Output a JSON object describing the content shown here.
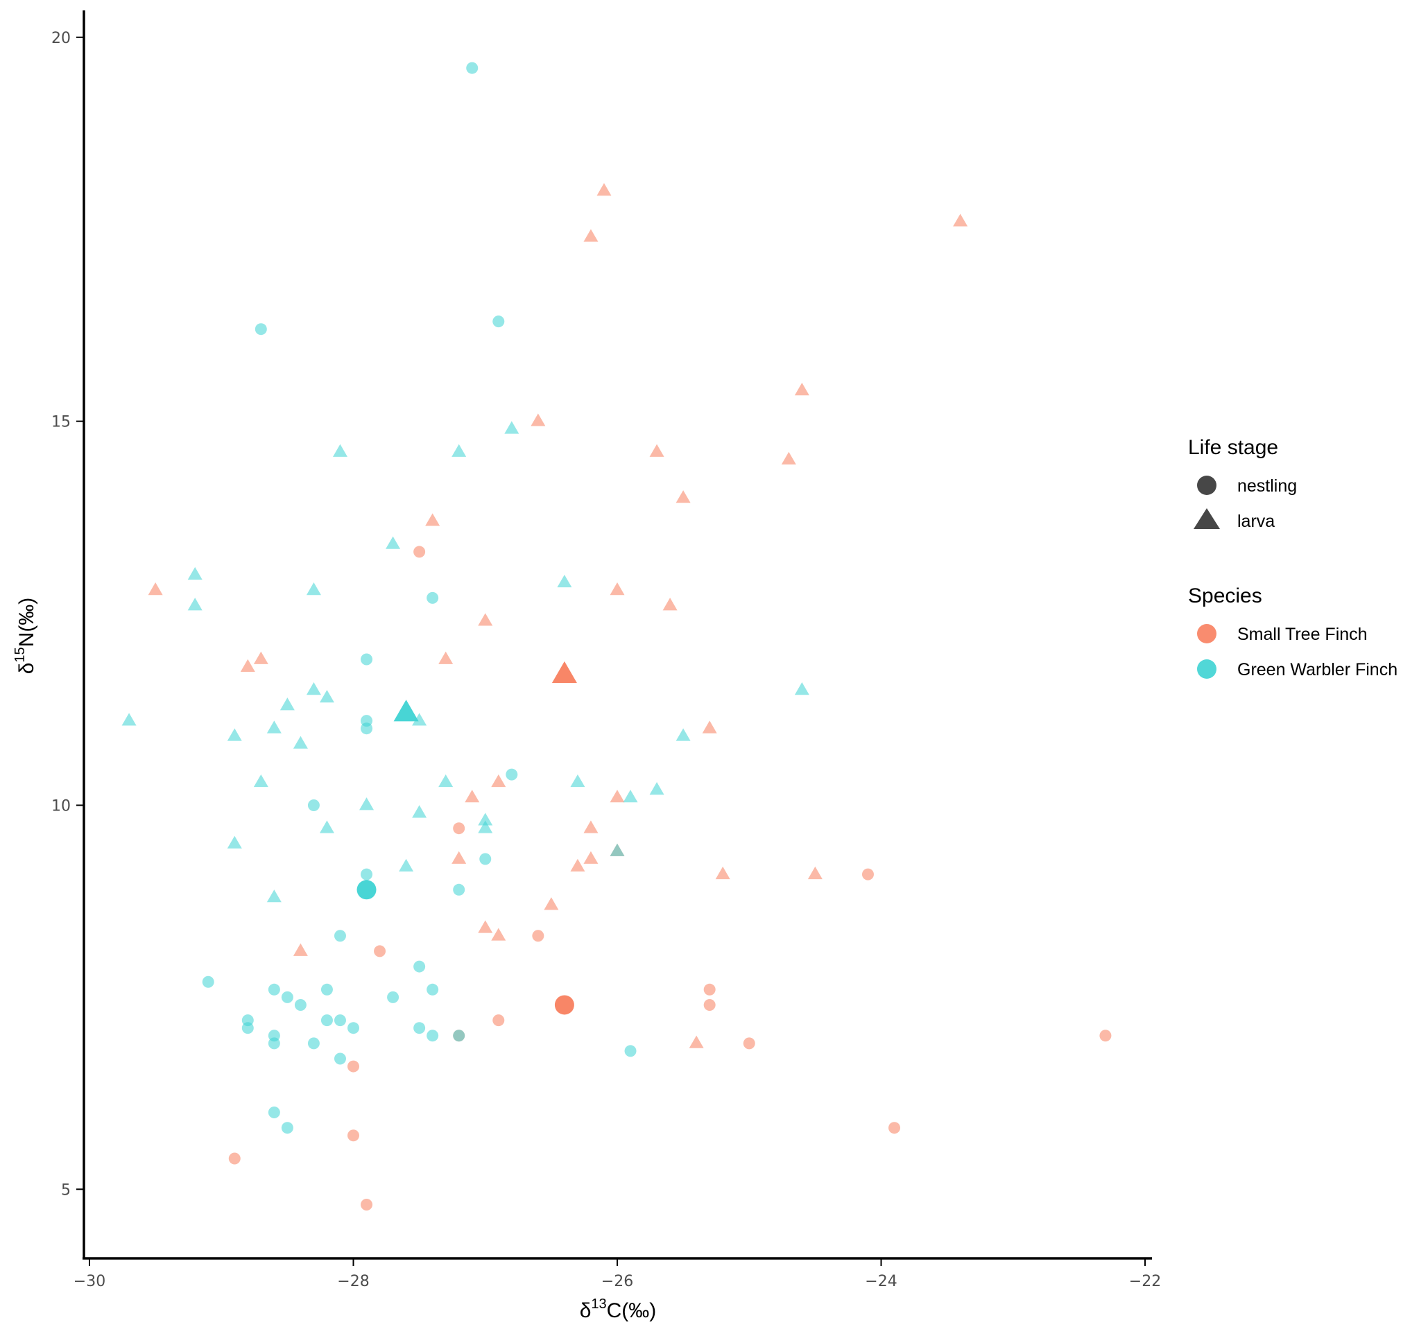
{
  "chart_data": {
    "type": "scatter",
    "xlabel": {
      "prefix": "δ",
      "sup": "13",
      "suffix": "C(‰)"
    },
    "ylabel": {
      "prefix": "δ",
      "sup": "15",
      "suffix": "N(‰)"
    },
    "xlim": [
      -30,
      -22
    ],
    "ylim": [
      4.1,
      20.35
    ],
    "x_ticks": [
      -30,
      -28,
      -26,
      -24,
      -22
    ],
    "x_tick_labels": [
      "−30",
      "−28",
      "−26",
      "−24",
      "−22"
    ],
    "y_ticks": [
      5,
      10,
      15,
      20
    ],
    "y_tick_labels": [
      "5",
      "10",
      "15",
      "20"
    ],
    "grid": false,
    "legend_position": "right",
    "legends": {
      "shape": {
        "title": "Life stage",
        "items": [
          {
            "label": "nestling",
            "shape": "circle"
          },
          {
            "label": "larva",
            "shape": "triangle"
          }
        ]
      },
      "color": {
        "title": "Species",
        "items": [
          {
            "label": "Small Tree Finch",
            "color": "#f8805f"
          },
          {
            "label": "Green Warbler Finch",
            "color": "#3ed3d3"
          }
        ]
      }
    },
    "series": [
      {
        "name": "Small Tree Finch",
        "color": "#f8805f",
        "nestling": [
          [
            -27.5,
            13.3
          ],
          [
            -27.2,
            9.7
          ],
          [
            -26.6,
            8.3
          ],
          [
            -27.8,
            8.1
          ],
          [
            -27.2,
            7.0
          ],
          [
            -26.9,
            7.2
          ],
          [
            -25.3,
            7.6
          ],
          [
            -25.3,
            7.4
          ],
          [
            -25.0,
            6.9
          ],
          [
            -24.1,
            9.1
          ],
          [
            -22.3,
            7.0
          ],
          [
            -23.9,
            5.8
          ],
          [
            -28.0,
            6.6
          ],
          [
            -28.0,
            5.7
          ],
          [
            -28.9,
            5.4
          ],
          [
            -27.9,
            4.8
          ]
        ],
        "larva": [
          [
            -26.1,
            18.0
          ],
          [
            -26.2,
            17.4
          ],
          [
            -23.4,
            17.6
          ],
          [
            -24.6,
            15.4
          ],
          [
            -26.6,
            15.0
          ],
          [
            -25.7,
            14.6
          ],
          [
            -24.7,
            14.5
          ],
          [
            -25.5,
            14.0
          ],
          [
            -27.4,
            13.7
          ],
          [
            -29.5,
            12.8
          ],
          [
            -26.0,
            12.8
          ],
          [
            -25.6,
            12.6
          ],
          [
            -27.0,
            12.4
          ],
          [
            -28.7,
            11.9
          ],
          [
            -28.8,
            11.8
          ],
          [
            -27.3,
            11.9
          ],
          [
            -25.3,
            11.0
          ],
          [
            -27.1,
            10.1
          ],
          [
            -26.9,
            10.3
          ],
          [
            -26.0,
            10.1
          ],
          [
            -26.2,
            9.7
          ],
          [
            -27.2,
            9.3
          ],
          [
            -26.3,
            9.2
          ],
          [
            -26.2,
            9.3
          ],
          [
            -26.0,
            9.4
          ],
          [
            -25.2,
            9.1
          ],
          [
            -24.5,
            9.1
          ],
          [
            -26.5,
            8.7
          ],
          [
            -27.0,
            8.4
          ],
          [
            -26.9,
            8.3
          ],
          [
            -28.4,
            8.1
          ],
          [
            -25.4,
            6.9
          ]
        ],
        "mean": {
          "nestling": [
            -26.4,
            7.4
          ],
          "larva": [
            -26.4,
            11.7
          ]
        }
      },
      {
        "name": "Green Warbler Finch",
        "color": "#3ed3d3",
        "nestling": [
          [
            -27.1,
            19.6
          ],
          [
            -26.9,
            16.3
          ],
          [
            -28.7,
            16.2
          ],
          [
            -27.4,
            12.7
          ],
          [
            -27.9,
            11.9
          ],
          [
            -27.9,
            11.1
          ],
          [
            -27.9,
            11.0
          ],
          [
            -26.8,
            10.4
          ],
          [
            -28.3,
            10.0
          ],
          [
            -27.0,
            9.3
          ],
          [
            -27.9,
            9.1
          ],
          [
            -27.2,
            8.9
          ],
          [
            -28.1,
            8.3
          ],
          [
            -27.5,
            7.9
          ],
          [
            -28.6,
            7.6
          ],
          [
            -28.5,
            7.5
          ],
          [
            -28.2,
            7.6
          ],
          [
            -27.7,
            7.5
          ],
          [
            -27.4,
            7.6
          ],
          [
            -28.4,
            7.4
          ],
          [
            -28.2,
            7.2
          ],
          [
            -28.1,
            7.2
          ],
          [
            -28.0,
            7.1
          ],
          [
            -28.8,
            7.2
          ],
          [
            -28.8,
            7.1
          ],
          [
            -29.1,
            7.7
          ],
          [
            -28.6,
            7.0
          ],
          [
            -28.6,
            6.9
          ],
          [
            -28.3,
            6.9
          ],
          [
            -27.5,
            7.1
          ],
          [
            -27.4,
            7.0
          ],
          [
            -27.2,
            7.0
          ],
          [
            -28.1,
            6.7
          ],
          [
            -25.9,
            6.8
          ],
          [
            -28.6,
            6.0
          ],
          [
            -28.5,
            5.8
          ]
        ],
        "larva": [
          [
            -26.8,
            14.9
          ],
          [
            -28.1,
            14.6
          ],
          [
            -27.2,
            14.6
          ],
          [
            -27.7,
            13.4
          ],
          [
            -29.2,
            13.0
          ],
          [
            -29.2,
            12.6
          ],
          [
            -28.3,
            12.8
          ],
          [
            -26.4,
            12.9
          ],
          [
            -28.3,
            11.5
          ],
          [
            -28.2,
            11.4
          ],
          [
            -28.5,
            11.3
          ],
          [
            -24.6,
            11.5
          ],
          [
            -29.7,
            11.1
          ],
          [
            -28.6,
            11.0
          ],
          [
            -28.9,
            10.9
          ],
          [
            -27.5,
            11.1
          ],
          [
            -28.4,
            10.8
          ],
          [
            -25.5,
            10.9
          ],
          [
            -28.7,
            10.3
          ],
          [
            -27.3,
            10.3
          ],
          [
            -26.3,
            10.3
          ],
          [
            -25.9,
            10.1
          ],
          [
            -25.7,
            10.2
          ],
          [
            -27.9,
            10.0
          ],
          [
            -27.5,
            9.9
          ],
          [
            -27.0,
            9.8
          ],
          [
            -27.0,
            9.7
          ],
          [
            -28.2,
            9.7
          ],
          [
            -28.9,
            9.5
          ],
          [
            -27.6,
            9.2
          ],
          [
            -26.0,
            9.4
          ],
          [
            -28.6,
            8.8
          ]
        ],
        "mean": {
          "nestling": [
            -27.9,
            8.9
          ],
          "larva": [
            -27.6,
            11.2
          ]
        }
      }
    ]
  }
}
